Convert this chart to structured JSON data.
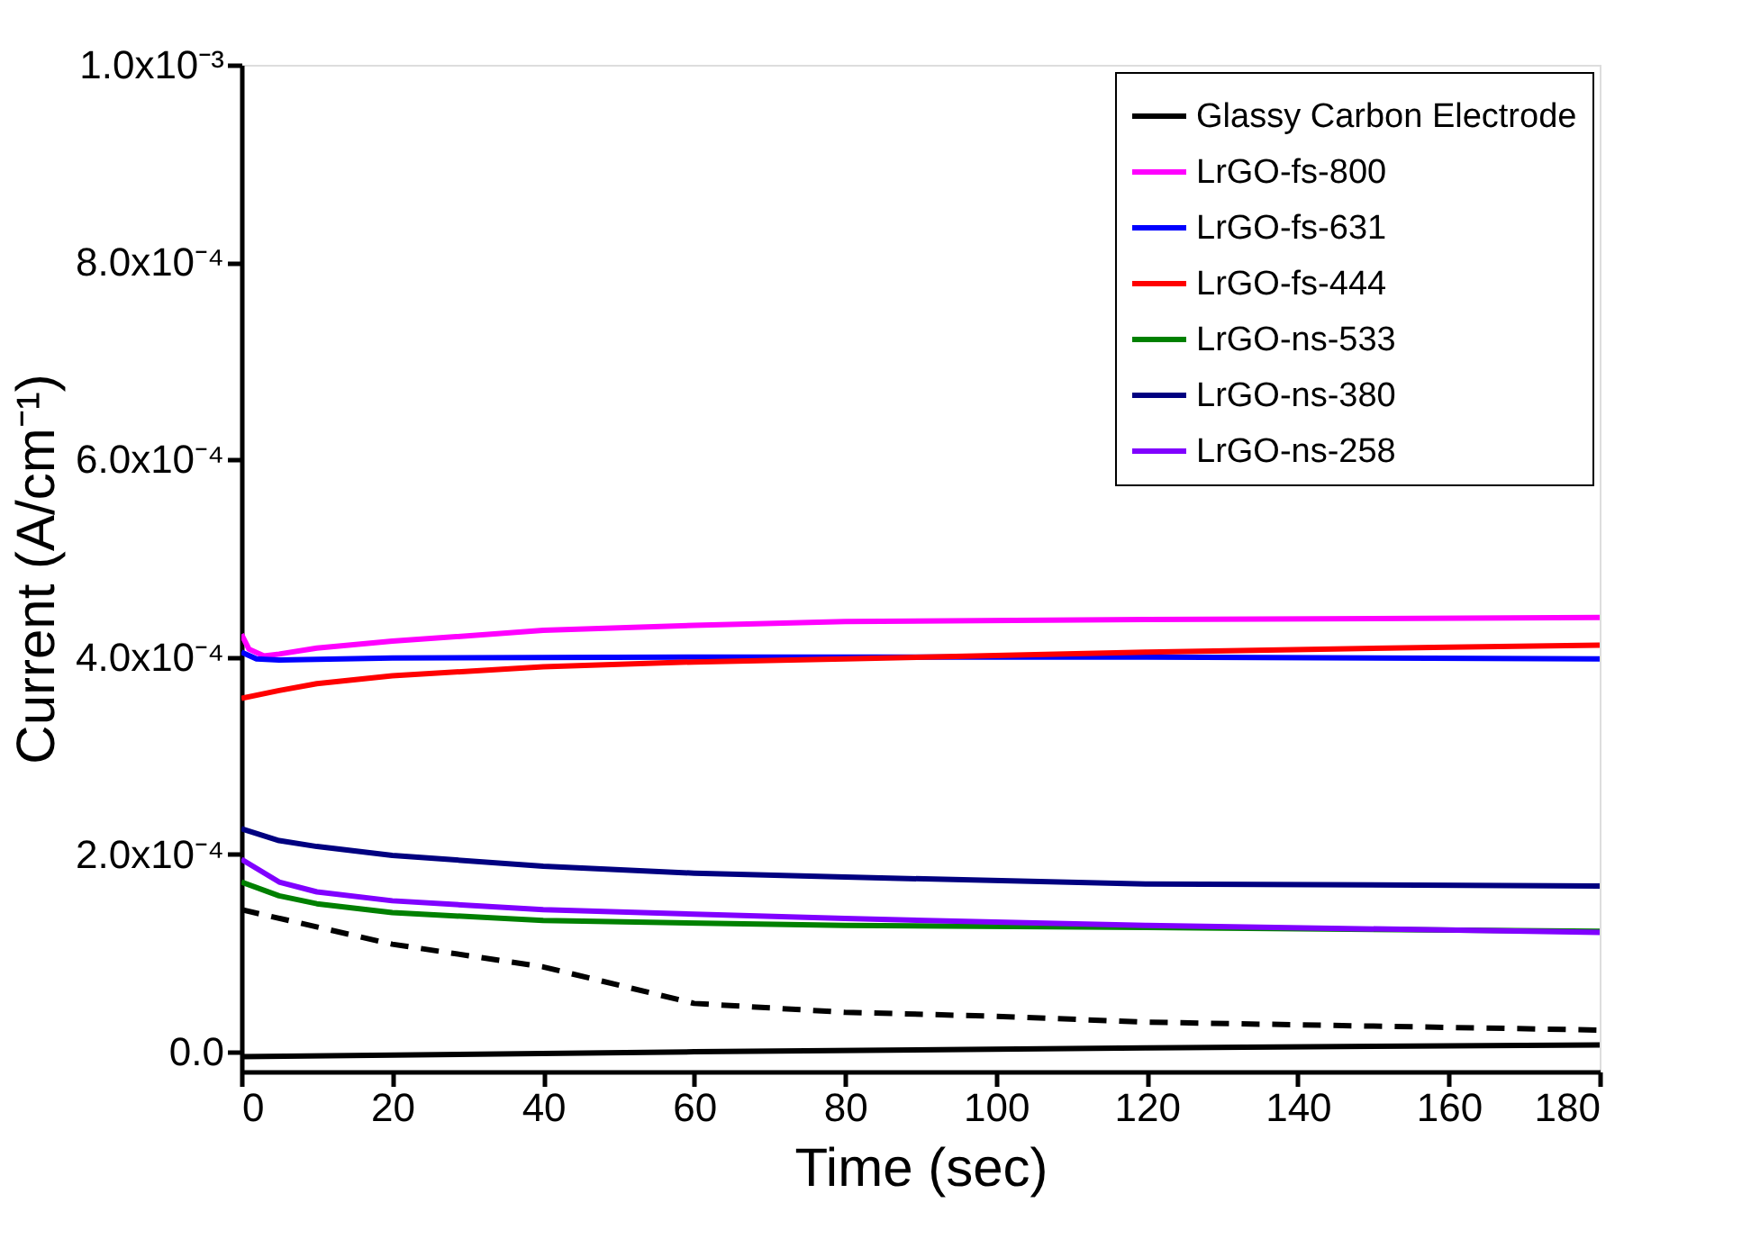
{
  "chart_data": {
    "type": "line",
    "xlabel": "Time (sec)",
    "ylabel": "Current (A/cm⁻¹)",
    "xlim": [
      0,
      180
    ],
    "xticks": [
      0,
      20,
      40,
      60,
      80,
      100,
      120,
      140,
      160,
      180
    ],
    "ylim": [
      -2e-05,
      0.001
    ],
    "yticks": [
      {
        "value": 0,
        "label": "0.0"
      },
      {
        "value": 0.0002,
        "label": "2.0x10⁻⁴"
      },
      {
        "value": 0.0004,
        "label": "4.0x10⁻⁴"
      },
      {
        "value": 0.0006,
        "label": "6.0x10⁻⁴"
      },
      {
        "value": 0.0008,
        "label": "8.0x10⁻⁴"
      },
      {
        "value": 0.001,
        "label": "1.0x10⁻³"
      }
    ],
    "grid": false,
    "legend": "top right",
    "line_style": "solid",
    "series": [
      {
        "name": "Glassy Carbon Electrode",
        "color": "#000000",
        "x": [
          0,
          60,
          120,
          180
        ],
        "values": [
          -5e-06,
          0.0,
          4e-06,
          7e-06
        ]
      },
      {
        "name": "LrGO-fs-800",
        "color": "#ff00ff",
        "x": [
          0,
          1,
          3,
          5,
          10,
          20,
          40,
          60,
          80,
          120,
          180
        ],
        "values": [
          0.000423,
          0.000408,
          0.000401,
          0.000403,
          0.000409,
          0.000416,
          0.000427,
          0.000432,
          0.000436,
          0.000438,
          0.00044
        ]
      },
      {
        "name": "LrGO-fs-631",
        "color": "#0000ff",
        "x": [
          0,
          2,
          5,
          20,
          60,
          120,
          180
        ],
        "values": [
          0.000405,
          0.000398,
          0.000397,
          0.000399,
          0.0004,
          0.0004,
          0.000398
        ]
      },
      {
        "name": "LrGO-fs-444",
        "color": "#ff0000",
        "x": [
          0,
          5,
          10,
          20,
          40,
          60,
          80,
          120,
          160,
          180
        ],
        "values": [
          0.000358,
          0.000366,
          0.000373,
          0.000381,
          0.00039,
          0.000395,
          0.000398,
          0.000405,
          0.00041,
          0.000412
        ]
      },
      {
        "name": "LrGO-ns-533",
        "color": "#008000",
        "x": [
          0,
          5,
          10,
          20,
          40,
          80,
          120,
          180
        ],
        "values": [
          0.000172,
          0.000158,
          0.00015,
          0.000141,
          0.000133,
          0.000128,
          0.000126,
          0.000122
        ]
      },
      {
        "name": "LrGO-ns-380",
        "color": "#000080",
        "x": [
          0,
          5,
          10,
          20,
          40,
          60,
          80,
          120,
          180
        ],
        "values": [
          0.000226,
          0.000214,
          0.000208,
          0.000199,
          0.000188,
          0.000181,
          0.000177,
          0.00017,
          0.000168
        ]
      },
      {
        "name": "LrGO-ns-258",
        "color": "#8000ff",
        "x": [
          0,
          5,
          10,
          20,
          40,
          80,
          120,
          180
        ],
        "values": [
          0.000195,
          0.000172,
          0.000162,
          0.000153,
          0.000144,
          0.000135,
          0.000128,
          0.000121
        ]
      },
      {
        "color": "#000000",
        "line_style": "dashed",
        "x": [
          0,
          20,
          40,
          60,
          80,
          100,
          120,
          150,
          180
        ],
        "values": [
          0.000144,
          0.000109,
          8.6e-05,
          4.9e-05,
          4e-05,
          3.6e-05,
          3e-05,
          2.6e-05,
          2.2e-05
        ]
      }
    ]
  }
}
